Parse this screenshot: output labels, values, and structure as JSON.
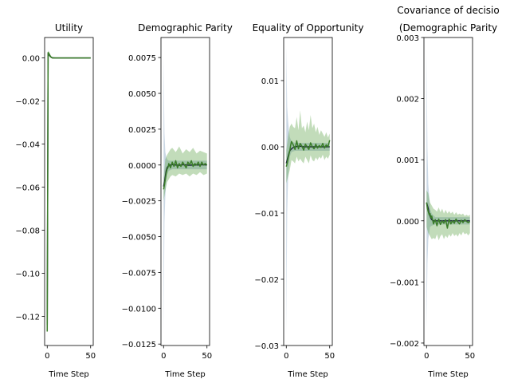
{
  "chart_data": [
    {
      "type": "line",
      "title": "Utility",
      "xlabel": "Time Step",
      "ylabel": "",
      "xlim": [
        -3,
        53
      ],
      "ylim": [
        -0.1335,
        0.0095
      ],
      "xticks": [
        0,
        50
      ],
      "xtick_labels": [
        "0",
        "50"
      ],
      "yticks": [
        0.0,
        -0.02,
        -0.04,
        -0.06,
        -0.08,
        -0.1,
        -0.12
      ],
      "ytick_labels": [
        "0.00",
        "−0.02",
        "−0.04",
        "−0.06",
        "−0.08",
        "−0.10",
        "−0.12"
      ],
      "series": [
        {
          "color": "#1f2a3d",
          "x": [
            0,
            1,
            2,
            3,
            4,
            5,
            6,
            8,
            10,
            15,
            20,
            30,
            40,
            50
          ],
          "y": [
            -0.124,
            0.002,
            0.0015,
            0.001,
            0.0005,
            0.0002,
            0.0,
            0.0,
            0.0,
            0.0,
            0.0,
            0.0,
            0.0,
            0.0
          ]
        },
        {
          "color": "#3a7d28",
          "x": [
            0,
            1,
            2,
            3,
            4,
            5,
            6,
            8,
            10,
            15,
            20,
            30,
            40,
            50
          ],
          "y": [
            -0.127,
            0.0025,
            0.002,
            0.0012,
            0.0006,
            0.0002,
            0.0,
            0.0,
            0.0,
            0.0,
            0.0,
            0.0,
            0.0,
            0.0
          ]
        }
      ],
      "bands": [
        {
          "color": "#6a8fb5",
          "x": [
            0,
            1,
            2,
            3,
            5,
            10,
            50
          ],
          "lower": [
            -0.128,
            0.0005,
            0.0008,
            0.0004,
            0.0,
            -0.0002,
            -0.0002
          ],
          "upper": [
            -0.12,
            0.003,
            0.0025,
            0.0015,
            0.0005,
            0.0002,
            0.0002
          ]
        },
        {
          "color": "#4f9a3a",
          "x": [
            0,
            1,
            2,
            3,
            5,
            10,
            50
          ],
          "lower": [
            -0.13,
            0.001,
            0.001,
            0.0005,
            0.0,
            -0.0002,
            -0.0002
          ],
          "upper": [
            -0.123,
            0.0035,
            0.003,
            0.002,
            0.0006,
            0.0002,
            0.0002
          ]
        }
      ]
    },
    {
      "type": "line",
      "title": "Demographic Parity",
      "xlabel": "Time Step",
      "ylabel": "",
      "xlim": [
        -3,
        53
      ],
      "ylim": [
        -0.0126,
        0.0089
      ],
      "xticks": [
        0,
        50
      ],
      "xtick_labels": [
        "0",
        "50"
      ],
      "yticks": [
        0.0075,
        0.005,
        0.0025,
        0.0,
        -0.0025,
        -0.005,
        -0.0075,
        -0.01,
        -0.0125
      ],
      "ytick_labels": [
        "0.0075",
        "0.0050",
        "0.0025",
        "0.0000",
        "−0.0025",
        "−0.0050",
        "−0.0075",
        "−0.0100",
        "−0.0125"
      ],
      "series": [
        {
          "color": "#1f2a3d",
          "x": [
            0,
            1,
            2,
            3,
            4,
            5,
            6,
            8,
            10,
            14,
            18,
            22,
            26,
            30,
            35,
            40,
            45,
            50
          ],
          "y": [
            -0.0015,
            -0.0012,
            -0.0008,
            -0.0004,
            -0.0002,
            -0.0001,
            -5e-05,
            0.0,
            3e-05,
            0.0,
            -2e-05,
            2e-05,
            0.0,
            -2e-05,
            1e-05,
            0.0,
            2e-05,
            0.0
          ]
        },
        {
          "color": "#3a7d28",
          "x": [
            0,
            1,
            2,
            3,
            4,
            5,
            6,
            8,
            10,
            12,
            14,
            16,
            18,
            20,
            22,
            24,
            26,
            28,
            30,
            32,
            34,
            36,
            38,
            40,
            42,
            44,
            46,
            48,
            50
          ],
          "y": [
            -0.0017,
            -0.0014,
            -0.001,
            -0.0006,
            -0.0003,
            -0.0002,
            0.0001,
            -0.0002,
            0.0002,
            -0.0001,
            0.0003,
            -0.0002,
            0.0001,
            -0.0001,
            0.0002,
            0.0,
            -0.0002,
            0.0002,
            0.0,
            0.0003,
            -0.0001,
            0.0001,
            0.0,
            0.0002,
            -0.0001,
            0.0002,
            0.0,
            0.0001,
            0.0
          ]
        }
      ],
      "bands": [
        {
          "color": "#6a8fb5",
          "x": [
            0,
            1,
            2,
            3,
            4,
            6,
            10,
            20,
            30,
            40,
            50
          ],
          "lower": [
            -0.0118,
            -0.004,
            -0.0022,
            -0.0012,
            -0.0007,
            -0.0004,
            -0.0003,
            -0.0003,
            -0.0003,
            -0.0003,
            -0.0003
          ],
          "upper": [
            0.0077,
            0.0022,
            0.0009,
            0.0006,
            0.0004,
            0.0003,
            0.0003,
            0.0003,
            0.0003,
            0.0003,
            0.0003
          ]
        },
        {
          "color": "#4f9a3a",
          "x": [
            0,
            2,
            4,
            6,
            8,
            10,
            14,
            18,
            22,
            26,
            30,
            34,
            38,
            42,
            46,
            50
          ],
          "lower": [
            -0.0025,
            -0.0018,
            -0.0012,
            -0.001,
            -0.0008,
            -0.0007,
            -0.0008,
            -0.0006,
            -0.0007,
            -0.0006,
            -0.0008,
            -0.0006,
            -0.0007,
            -0.0005,
            -0.0007,
            -0.0006
          ],
          "upper": [
            -0.0009,
            0.0004,
            0.0007,
            0.0009,
            0.0011,
            0.0012,
            0.0009,
            0.0013,
            0.0008,
            0.0011,
            0.0009,
            0.0012,
            0.0008,
            0.001,
            0.0009,
            0.0008
          ]
        }
      ]
    },
    {
      "type": "line",
      "title": "Equality of Opportunity",
      "xlabel": "Time Step",
      "ylabel": "",
      "xlim": [
        -3,
        53
      ],
      "ylim": [
        -0.03,
        0.0165
      ],
      "xticks": [
        0,
        50
      ],
      "xtick_labels": [
        "0",
        "50"
      ],
      "yticks": [
        0.01,
        0.0,
        -0.01,
        -0.02,
        -0.03
      ],
      "ytick_labels": [
        "0.01",
        "0.00",
        "−0.01",
        "−0.02",
        "−0.03"
      ],
      "series": [
        {
          "color": "#1f2a3d",
          "x": [
            0,
            1,
            2,
            3,
            4,
            6,
            8,
            10,
            15,
            20,
            30,
            40,
            50
          ],
          "y": [
            -0.0025,
            -0.002,
            -0.0015,
            -0.001,
            -0.0006,
            -0.0003,
            -0.0001,
            0.0,
            0.0001,
            0.0,
            0.0,
            0.0,
            0.0
          ]
        },
        {
          "color": "#3a7d28",
          "x": [
            0,
            1,
            2,
            3,
            4,
            5,
            6,
            8,
            10,
            12,
            14,
            16,
            18,
            20,
            22,
            24,
            26,
            28,
            30,
            32,
            34,
            36,
            38,
            40,
            42,
            44,
            46,
            48,
            50
          ],
          "y": [
            -0.003,
            -0.0025,
            -0.0018,
            -0.0012,
            -0.0006,
            0.0002,
            0.0008,
            0.0003,
            -0.0004,
            0.0009,
            -0.0003,
            0.0005,
            0.0001,
            -0.0005,
            0.0004,
            0.0,
            -0.0004,
            0.0006,
            0.0,
            -0.0003,
            0.0004,
            -0.0002,
            0.0002,
            -0.0001,
            0.0005,
            -0.0002,
            0.0003,
            0.0,
            0.001
          ]
        }
      ],
      "bands": [
        {
          "color": "#6a8fb5",
          "x": [
            0,
            1,
            2,
            3,
            4,
            6,
            10,
            20,
            30,
            40,
            50
          ],
          "lower": [
            -0.0285,
            -0.01,
            -0.005,
            -0.003,
            -0.0015,
            -0.0008,
            -0.0006,
            -0.0006,
            -0.0006,
            -0.0006,
            -0.0006
          ],
          "upper": [
            0.0152,
            0.006,
            0.004,
            0.0025,
            0.0015,
            0.0008,
            0.0006,
            0.0006,
            0.0006,
            0.0006,
            0.0006
          ]
        },
        {
          "color": "#4f9a3a",
          "x": [
            0,
            2,
            4,
            6,
            8,
            10,
            12,
            14,
            16,
            18,
            20,
            22,
            24,
            26,
            28,
            30,
            32,
            34,
            36,
            38,
            40,
            42,
            44,
            46,
            48,
            50
          ],
          "lower": [
            -0.0055,
            -0.0045,
            -0.0035,
            -0.002,
            -0.0022,
            -0.0025,
            -0.0015,
            -0.0022,
            -0.0018,
            -0.0022,
            -0.0025,
            -0.0015,
            -0.002,
            -0.0025,
            -0.0013,
            -0.002,
            -0.0022,
            -0.0016,
            -0.002,
            -0.0015,
            -0.0018,
            -0.0012,
            -0.002,
            -0.0015,
            -0.0018,
            -0.0012
          ],
          "upper": [
            -0.0005,
            0.0015,
            0.003,
            0.0035,
            0.003,
            0.0028,
            0.0045,
            0.0025,
            0.0055,
            0.0028,
            0.0032,
            0.0022,
            0.0038,
            0.0025,
            0.0048,
            0.0028,
            0.0035,
            0.0022,
            0.003,
            0.0018,
            0.0025,
            0.002,
            0.0015,
            0.0022,
            0.0014,
            0.002
          ]
        }
      ]
    },
    {
      "type": "line",
      "title": "Covariance of decisio",
      "subtitle": "(Demographic Parity",
      "xlabel": "Time Step",
      "ylabel": "",
      "xlim": [
        -3,
        53
      ],
      "ylim": [
        -0.00204,
        0.003
      ],
      "xticks": [
        0,
        50
      ],
      "xtick_labels": [
        "0",
        "50"
      ],
      "yticks": [
        0.003,
        0.002,
        0.001,
        0.0,
        -0.001,
        -0.002
      ],
      "ytick_labels": [
        "0.003",
        "0.002",
        "0.001",
        "0.000",
        "−0.001",
        "−0.002"
      ],
      "series": [
        {
          "color": "#1f2a3d",
          "x": [
            0,
            1,
            2,
            3,
            4,
            5,
            6,
            8,
            10,
            15,
            20,
            30,
            40,
            50
          ],
          "y": [
            0.0003,
            0.00025,
            0.0002,
            0.00012,
            8e-05,
            4e-05,
            2e-05,
            0.0,
            0.0,
            0.0,
            0.0,
            0.0,
            0.0,
            0.0
          ]
        },
        {
          "color": "#3a7d28",
          "x": [
            0,
            1,
            2,
            3,
            4,
            5,
            6,
            8,
            10,
            12,
            14,
            16,
            18,
            20,
            22,
            24,
            26,
            28,
            30,
            32,
            34,
            36,
            38,
            40,
            42,
            44,
            46,
            48,
            50
          ],
          "y": [
            0.0003,
            0.0002,
            0.00015,
            0.0001,
            0.00012,
            5e-05,
            8e-05,
            -5e-05,
            2e-05,
            -8e-05,
            3e-05,
            -6e-05,
            0.0,
            -4e-05,
            2e-05,
            -0.00012,
            3e-05,
            -5e-05,
            0.0,
            -4e-05,
            3e-05,
            -2e-05,
            -5e-05,
            1e-05,
            -3e-05,
            2e-05,
            -1e-05,
            -3e-05,
            -1e-05
          ]
        }
      ],
      "bands": [
        {
          "color": "#6a8fb5",
          "x": [
            0,
            1,
            2,
            3,
            4,
            6,
            10,
            20,
            30,
            40,
            50
          ],
          "lower": [
            -0.0018,
            -0.0007,
            -0.0003,
            -0.0002,
            -0.0001,
            -8e-05,
            -6e-05,
            -6e-05,
            -6e-05,
            -6e-05,
            -6e-05
          ],
          "upper": [
            0.0028,
            0.0012,
            0.0006,
            0.0004,
            0.0002,
            0.00012,
            6e-05,
            6e-05,
            6e-05,
            6e-05,
            6e-05
          ]
        },
        {
          "color": "#4f9a3a",
          "x": [
            0,
            2,
            4,
            6,
            8,
            10,
            12,
            14,
            16,
            18,
            20,
            22,
            24,
            26,
            28,
            30,
            32,
            34,
            36,
            38,
            40,
            42,
            44,
            46,
            48,
            50
          ],
          "lower": [
            -0.0001,
            -0.0002,
            -0.00025,
            -0.0003,
            -0.00028,
            -0.0003,
            -0.00022,
            -0.00032,
            -0.00025,
            -0.00022,
            -0.0003,
            -0.00024,
            -0.00028,
            -0.00022,
            -0.00026,
            -0.0002,
            -0.00025,
            -0.00022,
            -0.00026,
            -0.0002,
            -0.00024,
            -0.00018,
            -0.00022,
            -0.0002,
            -0.00024,
            -0.0002
          ],
          "upper": [
            0.0005,
            0.00045,
            0.0003,
            0.00025,
            0.0002,
            0.00018,
            0.00015,
            0.00022,
            0.00014,
            0.0002,
            0.00012,
            0.00018,
            0.00012,
            0.00016,
            0.00012,
            0.00015,
            0.0001,
            0.00014,
            0.0001,
            0.00012,
            0.0001,
            0.00012,
            8e-05,
            0.0001,
            8e-05,
            0.0001
          ]
        }
      ]
    }
  ]
}
